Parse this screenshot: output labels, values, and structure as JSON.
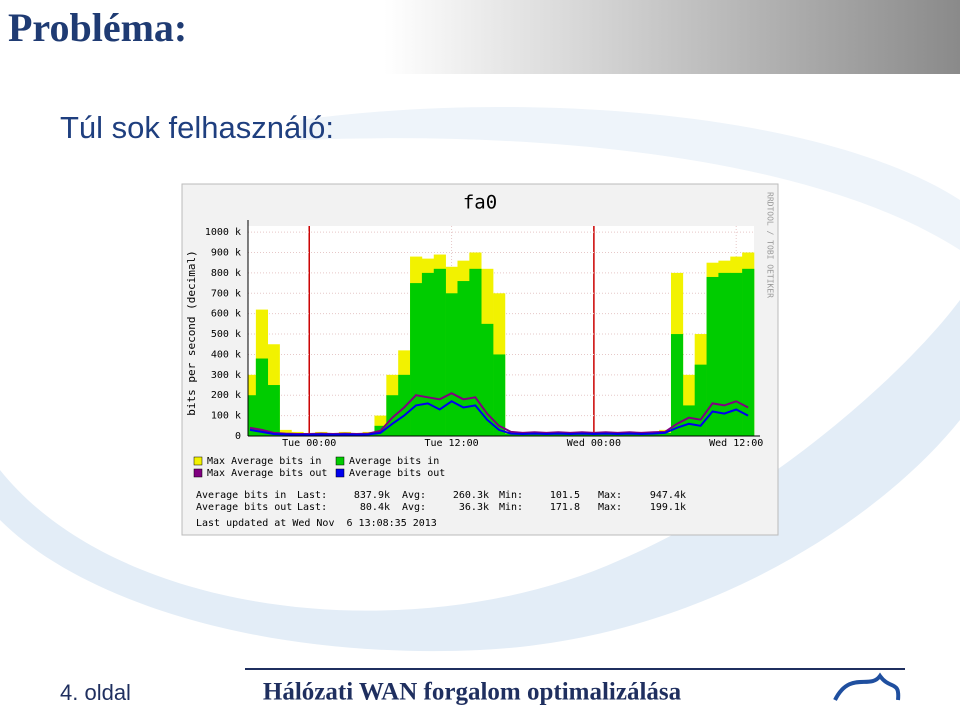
{
  "slide": {
    "title": "Probléma:",
    "subtitle": "Túl sok felhasználó:",
    "page": "4. oldal",
    "footer": "Hálózati WAN forgalom optimalizálása"
  },
  "chart_data": {
    "type": "area",
    "title": "fa0",
    "y_label": "bits per second (decimal)",
    "credit": "RRDTOOL / TOBI OETIKER",
    "categories": [
      null,
      null,
      null,
      null,
      null,
      "Tue 00:00",
      null,
      null,
      null,
      null,
      null,
      null,
      null,
      null,
      null,
      null,
      null,
      "Tue 12:00",
      null,
      null,
      null,
      null,
      null,
      null,
      null,
      null,
      null,
      null,
      null,
      "Wed 00:00",
      null,
      null,
      null,
      null,
      null,
      null,
      null,
      null,
      null,
      null,
      null,
      "Wed 12:00",
      null
    ],
    "series": [
      {
        "name": "Max Average bits in",
        "color": "#f2f200",
        "style": "area",
        "values": [
          300000,
          620000,
          450000,
          30000,
          20000,
          15000,
          20000,
          15000,
          20000,
          15000,
          20000,
          100000,
          300000,
          420000,
          880000,
          870000,
          890000,
          830000,
          860000,
          900000,
          820000,
          700000,
          20000,
          15000,
          20000,
          15000,
          20000,
          15000,
          20000,
          15000,
          20000,
          15000,
          20000,
          15000,
          20000,
          30000,
          800000,
          300000,
          500000,
          850000,
          860000,
          880000,
          900000
        ]
      },
      {
        "name": "Average bits in",
        "color": "#00cc00",
        "style": "area",
        "values": [
          200000,
          380000,
          250000,
          15000,
          10000,
          8000,
          10000,
          8000,
          10000,
          8000,
          10000,
          50000,
          200000,
          300000,
          750000,
          800000,
          820000,
          700000,
          760000,
          820000,
          550000,
          400000,
          12000,
          8000,
          10000,
          8000,
          10000,
          8000,
          10000,
          8000,
          10000,
          8000,
          10000,
          8000,
          10000,
          15000,
          500000,
          150000,
          350000,
          780000,
          800000,
          800000,
          820000
        ]
      },
      {
        "name": "Max Average bits out",
        "color": "#800080",
        "style": "line",
        "values": [
          40000,
          30000,
          15000,
          12000,
          10000,
          10000,
          12000,
          10000,
          12000,
          10000,
          12000,
          25000,
          90000,
          140000,
          200000,
          190000,
          180000,
          210000,
          180000,
          190000,
          110000,
          50000,
          20000,
          15000,
          18000,
          15000,
          18000,
          15000,
          18000,
          15000,
          18000,
          15000,
          18000,
          15000,
          18000,
          20000,
          60000,
          90000,
          80000,
          160000,
          150000,
          170000,
          140000
        ]
      },
      {
        "name": "Average bits out",
        "color": "#0000ee",
        "style": "line",
        "values": [
          30000,
          20000,
          10000,
          8000,
          6000,
          6000,
          8000,
          6000,
          8000,
          6000,
          8000,
          15000,
          60000,
          100000,
          150000,
          160000,
          130000,
          170000,
          140000,
          150000,
          80000,
          30000,
          12000,
          10000,
          12000,
          10000,
          12000,
          10000,
          12000,
          10000,
          12000,
          10000,
          12000,
          10000,
          12000,
          15000,
          40000,
          60000,
          50000,
          120000,
          110000,
          130000,
          100000
        ]
      }
    ],
    "ylim": [
      0,
      1030000
    ],
    "yticks": [
      0,
      {
        "value": 100000,
        "label": "100 k"
      },
      {
        "value": 200000,
        "label": "200 k"
      },
      {
        "value": 300000,
        "label": "300 k"
      },
      {
        "value": 400000,
        "label": "400 k"
      },
      {
        "value": 500000,
        "label": "500 k"
      },
      {
        "value": 600000,
        "label": "600 k"
      },
      {
        "value": 700000,
        "label": "700 k"
      },
      {
        "value": 800000,
        "label": "800 k"
      },
      {
        "value": 900000,
        "label": "900 k"
      },
      {
        "value": 1000000,
        "label": "1000 k"
      }
    ],
    "grid": true,
    "vline_color": "#cc0000",
    "stats": [
      [
        "Average bits in",
        "Last:",
        "837.9k",
        "Avg:",
        "260.3k",
        "Min:",
        "101.5",
        "Max:",
        "947.4k"
      ],
      [
        "Average bits out",
        "Last:",
        "80.4k",
        "Avg:",
        "36.3k",
        "Min:",
        "171.8",
        "Max:",
        "199.1k"
      ]
    ],
    "last_updated": "Last updated at Wed Nov  6 13:08:35 2013"
  }
}
